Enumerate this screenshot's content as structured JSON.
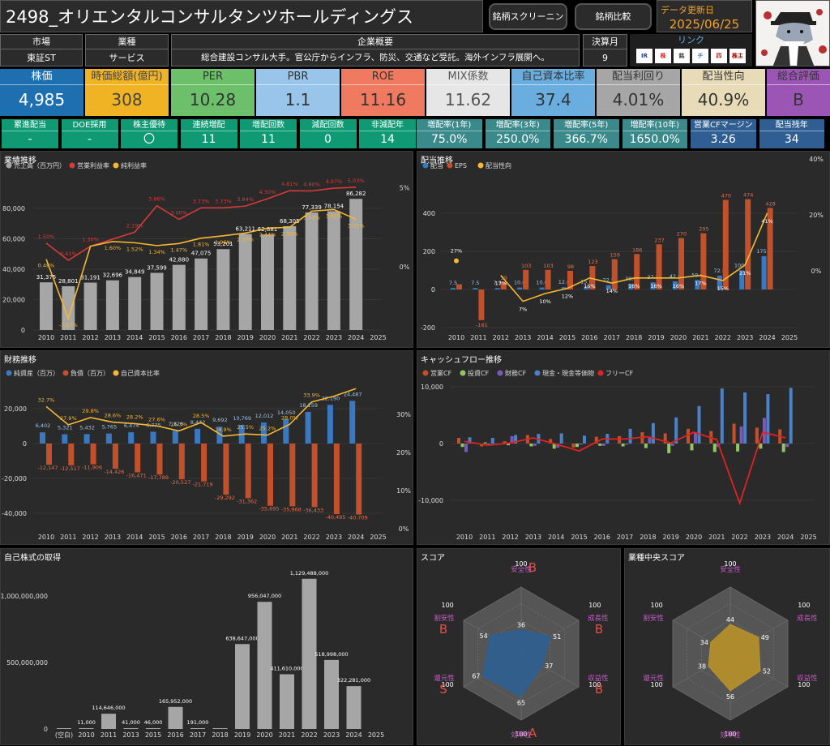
{
  "header": {
    "title": "2498_オリエンタルコンサルタンツホールディングス",
    "btn_screening": "銘柄スクリーニング",
    "btn_compare": "銘柄比較",
    "update_label": "データ更新日",
    "update_date": "2025/06/25"
  },
  "info": {
    "market_h": "市場",
    "market_v": "東証ST",
    "industry_h": "業種",
    "industry_v": "サービス",
    "summary_h": "企業概要",
    "summary_v": "総合建設コンサル大手。官公庁からインフラ、防災、交通など受託。海外インフラ展開へ。",
    "fy_h": "決算月",
    "fy_v": "9",
    "links_h": "リンク",
    "link_icons": [
      "IR",
      "株",
      "銘",
      "チ",
      "四",
      "株主優待"
    ]
  },
  "kpi": [
    {
      "k": "株価",
      "v": "4,985",
      "bg": "#1d6fb0"
    },
    {
      "k": "時価総額(億円)",
      "v": "308",
      "bg": "#f0b323",
      "fg": "#444"
    },
    {
      "k": "PER",
      "v": "10.28",
      "bg": "#6cc06a",
      "fg": "#333"
    },
    {
      "k": "PBR",
      "v": "1.1",
      "bg": "#9ac5ea",
      "fg": "#333"
    },
    {
      "k": "ROE",
      "v": "11.16",
      "bg": "#f07a5f",
      "fg": "#333"
    },
    {
      "k": "MIX係数",
      "v": "11.62",
      "bg": "#e6e6e6",
      "fg": "#555"
    },
    {
      "k": "自己資本比率",
      "v": "37.4",
      "bg": "#6aaee0",
      "fg": "#333"
    },
    {
      "k": "配当利回り",
      "v": "4.01%",
      "bg": "#a6a6a6",
      "fg": "#333"
    },
    {
      "k": "配当性向",
      "v": "40.9%",
      "bg": "#e8dcb8",
      "fg": "#333"
    },
    {
      "k": "総合評価",
      "v": "B",
      "bg": "#9b55b5",
      "fg": "#333"
    }
  ],
  "small": [
    {
      "k": "累進配当",
      "v": "-",
      "bg": "#0f9a73"
    },
    {
      "k": "DOE採用",
      "v": "-",
      "bg": "#0f9a73"
    },
    {
      "k": "株主優待",
      "v": "〇",
      "bg": "#0f9a73"
    },
    {
      "k": "連続増配",
      "v": "11",
      "bg": "#0f9a73"
    },
    {
      "k": "増配回数",
      "v": "11",
      "bg": "#0f9a73"
    },
    {
      "k": "減配回数",
      "v": "0",
      "bg": "#0f9a73"
    },
    {
      "k": "非減配年",
      "v": "14",
      "bg": "#0f9a73"
    },
    {
      "k": "増配率(1年)",
      "v": "75.0%",
      "bg": "#3a8a8c"
    },
    {
      "k": "増配率(3年)",
      "v": "250.0%",
      "bg": "#3a8a8c"
    },
    {
      "k": "増配率(5年)",
      "v": "366.7%",
      "bg": "#3a8a8c"
    },
    {
      "k": "増配率(10年)",
      "v": "1650.0%",
      "bg": "#3a8a8c"
    },
    {
      "k": "営業CFマージン",
      "v": "3.26",
      "bg": "#2f5f92"
    },
    {
      "k": "配当残年",
      "v": "34",
      "bg": "#2f5f92"
    }
  ],
  "chart_data": [
    {
      "id": "perf",
      "type": "bar",
      "title": "業績推移",
      "categories": [
        "2010",
        "2011",
        "2012",
        "2013",
        "2014",
        "2015",
        "2016",
        "2017",
        "2018",
        "2019",
        "2020",
        "2021",
        "2022",
        "2023",
        "2024",
        "2025"
      ],
      "series": [
        {
          "name": "売上高（百万円）",
          "color": "#a6a6a6",
          "values": [
            31375,
            28801,
            31191,
            32696,
            34849,
            37599,
            42880,
            47075,
            53201,
            63211,
            62881,
            68305,
            77339,
            78154,
            86282,
            null
          ],
          "labels": [
            "31,375",
            "28,801",
            "31,191",
            "32,696",
            "34,849",
            "37,599",
            "42,880",
            "47,075",
            "53,201",
            "63,211",
            "62,881",
            "68,305",
            "77,339",
            "78,154",
            "86,282",
            ""
          ]
        },
        {
          "name": "営業利益率",
          "color": "#d63a3a",
          "values": [
            1.5,
            0.41,
            1.3,
            null,
            2.19,
            3.86,
            3.0,
            3.73,
            3.73,
            3.84,
            4.3,
            4.81,
            4.8,
            4.97,
            5.03,
            null
          ],
          "labels": [
            "1.50%",
            "0.41%",
            "1.30%",
            "",
            "2.19%",
            "3.86%",
            "3.00%",
            "3.73%",
            "3.73%",
            "3.84%",
            "4.30%",
            "4.81%",
            "4.80%",
            "4.97%",
            "5.03%",
            ""
          ]
        },
        {
          "name": "純利益率",
          "color": "#f5b830",
          "values": [
            0.48,
            -3.27,
            1.3,
            1.6,
            1.52,
            1.34,
            1.47,
            1.81,
            1.96,
            2.13,
            2.44,
            2.5,
            3.52,
            3.62,
            3.01,
            null
          ],
          "labels": [
            "0.48%",
            "-3.27%",
            "",
            "1.60%",
            "1.52%",
            "1.34%",
            "1.47%",
            "1.81%",
            "1.96%",
            "2.13%",
            "2.44%",
            "2.50%",
            "3.52%",
            "3.62%",
            "3.01%",
            ""
          ]
        }
      ],
      "y_ticks": [
        "0",
        "20,000",
        "40,000",
        "60,000",
        "80,000"
      ],
      "y2_ticks": [
        "0%",
        "5%"
      ]
    },
    {
      "id": "div",
      "type": "bar",
      "title": "配当推移",
      "categories": [
        "2010",
        "2011",
        "2012",
        "2013",
        "2014",
        "2015",
        "2016",
        "2017",
        "2018",
        "2019",
        "2020",
        "2021",
        "2022",
        "2023",
        "2024",
        "2025"
      ],
      "series": [
        {
          "name": "配当",
          "color": "#3a78c2",
          "values": [
            7.5,
            7.5,
            7.5,
            10,
            10,
            12,
            15,
            22.5,
            30,
            37.5,
            42.5,
            50,
            72.5,
            100,
            175,
            null
          ]
        },
        {
          "name": "EPS",
          "color": "#c2502a",
          "values": [
            27,
            -161,
            39,
            103,
            103,
            98,
            123,
            159,
            186,
            237,
            270,
            295,
            470,
            474,
            428,
            null
          ],
          "labels": [
            "",
            "-161",
            "39",
            "103",
            "103",
            "98",
            "123",
            "159",
            "186",
            "237",
            "270",
            "295",
            "470",
            "474",
            "428",
            ""
          ]
        },
        {
          "name": "配当性向",
          "color": "#f5b830",
          "values": [
            27,
            null,
            17,
            7,
            10,
            12,
            16,
            14,
            16,
            16,
            16,
            17,
            15,
            21,
            41,
            null
          ],
          "labels": [
            "27%",
            "",
            "17%",
            "7%",
            "10%",
            "12%",
            "16%",
            "14%",
            "16%",
            "16%",
            "16%",
            "17%",
            "15%",
            "21%",
            "41%",
            ""
          ]
        }
      ],
      "div_labels": [
        "7.5",
        "7.5",
        "7.5",
        "10.0",
        "10.0",
        "12.0",
        "15.0",
        "22.5",
        "30.0",
        "37.5",
        "42.5",
        "50.0",
        "72.5",
        "100.0",
        "175.0",
        ""
      ],
      "y_ticks": [
        "-200",
        "0",
        "200",
        "400"
      ],
      "y2_ticks": [
        "0%",
        "20%",
        "40%"
      ]
    },
    {
      "id": "fin",
      "type": "bar",
      "title": "財務推移",
      "categories": [
        "2010",
        "2011",
        "2012",
        "2013",
        "2014",
        "2015",
        "2016",
        "2017",
        "2018",
        "2019",
        "2020",
        "2021",
        "2022",
        "2023",
        "2024",
        "2025"
      ],
      "series": [
        {
          "name": "純資産（百万）",
          "color": "#3a78c2",
          "values": [
            6402,
            5321,
            5432,
            5765,
            6474,
            6775,
            7326,
            8442,
            9692,
            10769,
            12012,
            14050,
            18159,
            22190,
            24487,
            null
          ],
          "labels": [
            "6,402",
            "5,321",
            "5,432",
            "5,765",
            "6,474",
            "6,775",
            "7,326",
            "8,442",
            "9,692",
            "10,769",
            "12,012",
            "14,050",
            "18,159",
            "22,190",
            "24,487",
            ""
          ]
        },
        {
          "name": "負債（百万）",
          "color": "#c2502a",
          "values": [
            -12147,
            -12517,
            -11906,
            -14426,
            -16471,
            -17789,
            -20527,
            -21719,
            -29292,
            -31362,
            -35695,
            -35968,
            -36433,
            -40495,
            -40709,
            null
          ],
          "labels": [
            "-12,147",
            "-12,517",
            "-11,906",
            "-14,426",
            "-16,471",
            "-17,789",
            "-20,527",
            "-21,719",
            "-29,292",
            "-31,362",
            "-35,695",
            "-35,968",
            "-36,433",
            "-40,495",
            "-40,709",
            ""
          ]
        },
        {
          "name": "自己資本比率",
          "color": "#f5b830",
          "values": [
            32.7,
            27.9,
            29.8,
            28.6,
            28.2,
            27.6,
            26.3,
            28.5,
            24.9,
            25.5,
            25.2,
            28.0,
            33.9,
            35.4,
            37.4,
            null
          ],
          "labels": [
            "32.7%",
            "27.9%",
            "29.8%",
            "28.6%",
            "28.2%",
            "27.6%",
            "26.3%",
            "28.5%",
            "24.9%",
            "25.5%",
            "25.2%",
            "28.0%",
            "33.9%",
            "",
            "",
            ""
          ]
        }
      ],
      "y_ticks": [
        "-40,000",
        "-20,000",
        "0",
        "20,000"
      ],
      "y2_ticks": [
        "0%",
        "10%",
        "20%",
        "30%"
      ]
    },
    {
      "id": "cf",
      "type": "bar",
      "title": "キャッシュフロー推移",
      "categories": [
        "2010",
        "2011",
        "2012",
        "2013",
        "2014",
        "2015",
        "2016",
        "2017",
        "2018",
        "2019",
        "2020",
        "2021",
        "2022",
        "2023",
        "2024",
        "2025"
      ],
      "series": [
        {
          "name": "営業CF",
          "color": "#c2502a",
          "values": [
            1000,
            -500,
            400,
            1500,
            800,
            -700,
            1200,
            1300,
            2000,
            1800,
            2600,
            2200,
            3500,
            2800,
            2500,
            null
          ]
        },
        {
          "name": "投資CF",
          "color": "#8fc860",
          "values": [
            -600,
            200,
            -300,
            -500,
            -900,
            -600,
            -400,
            -500,
            -800,
            -1700,
            -1200,
            -1500,
            -1400,
            -900,
            -1500,
            null
          ]
        },
        {
          "name": "財務CF",
          "color": "#7a5ab8",
          "values": [
            -1500,
            -300,
            1300,
            -400,
            -700,
            -200,
            -400,
            -200,
            1000,
            -400,
            2000,
            -600,
            3000,
            4500,
            -600,
            null
          ]
        },
        {
          "name": "現金・現金等価物",
          "color": "#4a82c8",
          "values": [
            1100,
            1000,
            1500,
            1700,
            1800,
            1400,
            1700,
            2600,
            3600,
            4600,
            6600,
            9700,
            9000,
            8700,
            9800,
            null
          ]
        },
        {
          "name": "フリーCF",
          "color": "#e02222",
          "values": [
            400,
            -300,
            100,
            1000,
            -100,
            -1300,
            800,
            800,
            1200,
            100,
            2000,
            700,
            -10500,
            2000,
            1000,
            null
          ]
        }
      ],
      "y_ticks": [
        "-10,000",
        "0",
        "10,000"
      ]
    },
    {
      "id": "buyback",
      "type": "bar",
      "title": "自己株式の取得",
      "categories": [
        "(空白)",
        "2010",
        "2011",
        "2013",
        "2015",
        "2016",
        "2017",
        "2018",
        "2019",
        "2020",
        "2021",
        "2022",
        "2023",
        "2024",
        "2025"
      ],
      "series": [
        {
          "name": "取得額",
          "color": "#a6a6a6",
          "values": [
            0,
            11000,
            114646000,
            41000,
            46000,
            165952000,
            191000,
            0,
            638647000,
            956047000,
            411610000,
            1129488000,
            518998000,
            322281000,
            null
          ],
          "labels": [
            "",
            "11,000",
            "114,646,000",
            "41,000",
            "46,000",
            "165,952,000",
            "191,000",
            "",
            "638,647,000",
            "956,047,000",
            "411,610,000",
            "1,129,488,000",
            "518,998,000",
            "322,281,000",
            ""
          ]
        }
      ],
      "y_ticks": [
        "0",
        "500,000,000",
        "1,000,000,000"
      ]
    },
    {
      "id": "score",
      "type": "radar",
      "title": "スコア",
      "axes": [
        {
          "name": "安全性",
          "grade": "B",
          "value": 36
        },
        {
          "name": "成長性",
          "grade": "B",
          "value": 51
        },
        {
          "name": "収益性",
          "grade": "B",
          "value": 37
        },
        {
          "name": "効率性",
          "grade": "A",
          "value": 65
        },
        {
          "name": "還元性",
          "grade": "S",
          "value": 67
        },
        {
          "name": "割安性",
          "grade": "B",
          "value": 54
        }
      ],
      "max": 100,
      "color": "#2f5f92"
    },
    {
      "id": "median",
      "type": "radar",
      "title": "業種中央スコア",
      "axes": [
        {
          "name": "安全性",
          "value": 44
        },
        {
          "name": "成長性",
          "value": 49
        },
        {
          "name": "収益性",
          "value": 52
        },
        {
          "name": "効率性",
          "value": 56
        },
        {
          "name": "還元性",
          "value": 38
        },
        {
          "name": "割安性",
          "value": 34
        }
      ],
      "max": 100,
      "color": "#b8922a"
    }
  ]
}
